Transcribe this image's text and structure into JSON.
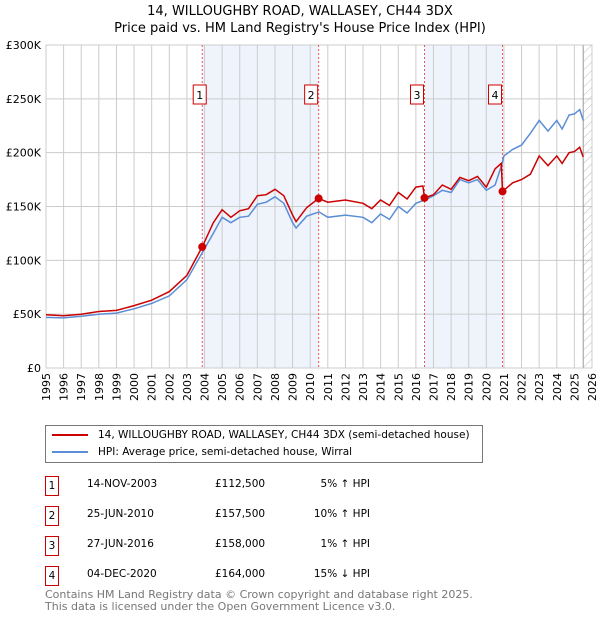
{
  "chart_data": {
    "type": "line",
    "title": "14, WILLOUGHBY ROAD, WALLASEY, CH44 3DX",
    "subtitle": "Price paid vs. HM Land Registry's House Price Index (HPI)",
    "xlim": [
      1995,
      2026
    ],
    "ylim": [
      0,
      300000
    ],
    "x_ticks": [
      "1995",
      "1996",
      "1997",
      "1998",
      "1999",
      "2000",
      "2001",
      "2002",
      "2003",
      "2004",
      "2005",
      "2006",
      "2007",
      "2008",
      "2009",
      "2010",
      "2011",
      "2012",
      "2013",
      "2014",
      "2015",
      "2016",
      "2017",
      "2018",
      "2019",
      "2020",
      "2021",
      "2022",
      "2023",
      "2024",
      "2025",
      "2026"
    ],
    "y_ticks": [
      {
        "v": 0,
        "label": "£0"
      },
      {
        "v": 50000,
        "label": "£50K"
      },
      {
        "v": 100000,
        "label": "£100K"
      },
      {
        "v": 150000,
        "label": "£150K"
      },
      {
        "v": 200000,
        "label": "£200K"
      },
      {
        "v": 250000,
        "label": "£250K"
      },
      {
        "v": 300000,
        "label": "£300K"
      }
    ],
    "grid": true,
    "shaded_ranges": [
      [
        2003.87,
        2010.48
      ],
      [
        2016.49,
        2020.92
      ]
    ],
    "forecast_start": 2025.5,
    "series": [
      {
        "name": "14, WILLOUGHBY ROAD, WALLASEY, CH44 3DX (semi-detached house)",
        "color": "#cc0000",
        "points": [
          [
            1995,
            49.5
          ],
          [
            1996,
            48.5
          ],
          [
            1997,
            50
          ],
          [
            1998,
            52.5
          ],
          [
            1999,
            53.5
          ],
          [
            2000,
            58
          ],
          [
            2001,
            63
          ],
          [
            2002,
            71
          ],
          [
            2003,
            86
          ],
          [
            2003.87,
            112.5
          ],
          [
            2004.5,
            135
          ],
          [
            2005,
            147
          ],
          [
            2005.5,
            140
          ],
          [
            2006,
            146
          ],
          [
            2006.5,
            148
          ],
          [
            2007,
            160
          ],
          [
            2007.5,
            161
          ],
          [
            2008,
            166
          ],
          [
            2008.5,
            160
          ],
          [
            2009,
            142
          ],
          [
            2009.2,
            136
          ],
          [
            2009.8,
            149
          ],
          [
            2010.48,
            157.5
          ],
          [
            2011,
            154
          ],
          [
            2012,
            156
          ],
          [
            2013,
            153
          ],
          [
            2013.5,
            148
          ],
          [
            2014,
            156
          ],
          [
            2014.5,
            151
          ],
          [
            2015,
            163
          ],
          [
            2015.5,
            157
          ],
          [
            2016,
            168
          ],
          [
            2016.4,
            169
          ],
          [
            2016.49,
            158
          ],
          [
            2017,
            161
          ],
          [
            2017.5,
            170
          ],
          [
            2018,
            166
          ],
          [
            2018.5,
            177
          ],
          [
            2019,
            174
          ],
          [
            2019.5,
            178
          ],
          [
            2020,
            168
          ],
          [
            2020.5,
            185
          ],
          [
            2020.85,
            190
          ],
          [
            2020.92,
            164
          ],
          [
            2021.5,
            172
          ],
          [
            2022,
            175
          ],
          [
            2022.5,
            180
          ],
          [
            2023,
            197
          ],
          [
            2023.5,
            188
          ],
          [
            2024,
            197
          ],
          [
            2024.3,
            190
          ],
          [
            2024.7,
            200
          ],
          [
            2025,
            201
          ],
          [
            2025.3,
            205
          ],
          [
            2025.5,
            196
          ]
        ]
      },
      {
        "name": "HPI: Average price, semi-detached house, Wirral",
        "color": "#5b8ed6",
        "points": [
          [
            1995,
            47
          ],
          [
            1996,
            46.5
          ],
          [
            1997,
            48
          ],
          [
            1998,
            50
          ],
          [
            1999,
            51
          ],
          [
            2000,
            55
          ],
          [
            2001,
            60
          ],
          [
            2002,
            67
          ],
          [
            2003,
            82
          ],
          [
            2003.87,
            107
          ],
          [
            2004.5,
            125
          ],
          [
            2005,
            140
          ],
          [
            2005.5,
            135
          ],
          [
            2006,
            140
          ],
          [
            2006.5,
            141
          ],
          [
            2007,
            152
          ],
          [
            2007.5,
            154
          ],
          [
            2008,
            159
          ],
          [
            2008.5,
            153
          ],
          [
            2009,
            135
          ],
          [
            2009.2,
            130
          ],
          [
            2009.8,
            141
          ],
          [
            2010.5,
            145
          ],
          [
            2011,
            140
          ],
          [
            2012,
            142
          ],
          [
            2013,
            140
          ],
          [
            2013.5,
            135
          ],
          [
            2014,
            143
          ],
          [
            2014.5,
            138
          ],
          [
            2015,
            150
          ],
          [
            2015.5,
            144
          ],
          [
            2016,
            153
          ],
          [
            2016.5,
            156
          ],
          [
            2017,
            160
          ],
          [
            2017.5,
            165
          ],
          [
            2018,
            163
          ],
          [
            2018.5,
            175
          ],
          [
            2019,
            172
          ],
          [
            2019.5,
            175
          ],
          [
            2020,
            165
          ],
          [
            2020.5,
            170
          ],
          [
            2020.9,
            190
          ],
          [
            2021,
            197
          ],
          [
            2021.5,
            203
          ],
          [
            2022,
            207
          ],
          [
            2022.5,
            218
          ],
          [
            2023,
            230
          ],
          [
            2023.5,
            220
          ],
          [
            2024,
            230
          ],
          [
            2024.3,
            222
          ],
          [
            2024.7,
            235
          ],
          [
            2025,
            236
          ],
          [
            2025.3,
            240
          ],
          [
            2025.5,
            230
          ]
        ]
      }
    ],
    "sales": [
      {
        "n": "1",
        "x": 2003.87,
        "price": 112500,
        "date": "14-NOV-2003",
        "price_label": "£112,500",
        "delta": "5% ↑ HPI"
      },
      {
        "n": "2",
        "x": 2010.48,
        "price": 157500,
        "date": "25-JUN-2010",
        "price_label": "£157,500",
        "delta": "10% ↑ HPI"
      },
      {
        "n": "3",
        "x": 2016.49,
        "price": 158000,
        "date": "27-JUN-2016",
        "price_label": "£158,000",
        "delta": "1% ↑ HPI"
      },
      {
        "n": "4",
        "x": 2020.92,
        "price": 164000,
        "date": "04-DEC-2020",
        "price_label": "£164,000",
        "delta": "15% ↓ HPI"
      }
    ]
  },
  "footer": [
    "Contains HM Land Registry data © Crown copyright and database right 2025.",
    "This data is licensed under the Open Government Licence v3.0."
  ]
}
